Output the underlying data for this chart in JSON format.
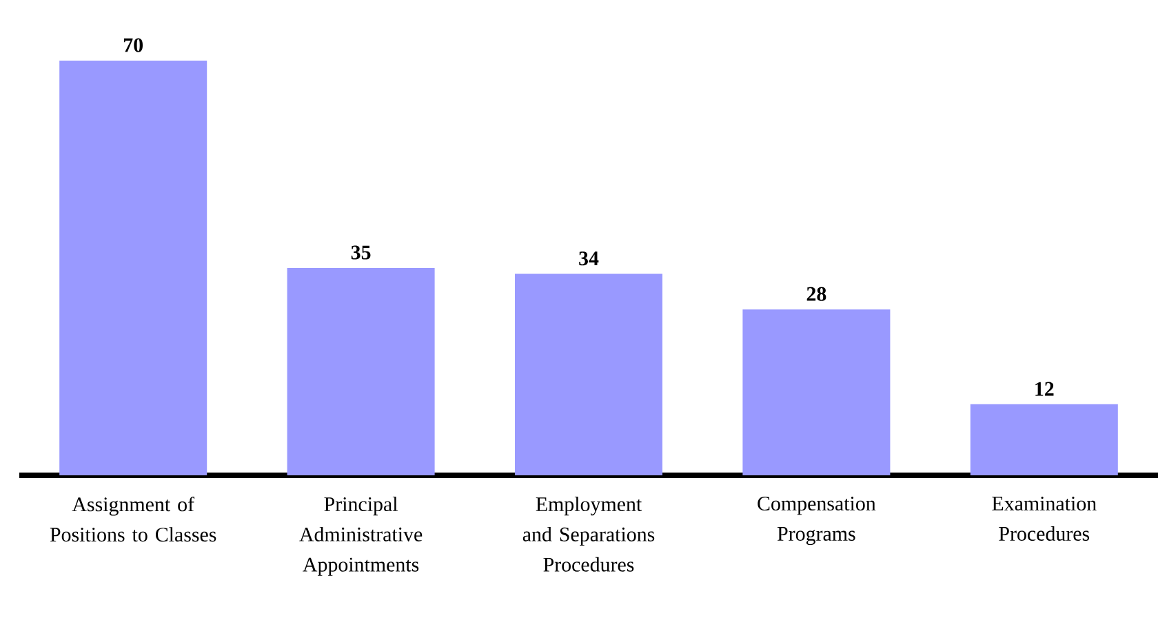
{
  "chart_data": {
    "type": "bar",
    "categories": [
      "Assignment of Positions to Classes",
      "Principal Administrative Appointments",
      "Employment and Separations Procedures",
      "Compensation Programs",
      "Examination Procedures"
    ],
    "values": [
      70,
      35,
      34,
      28,
      12
    ],
    "color": "#9999ff",
    "data_labels": true
  }
}
